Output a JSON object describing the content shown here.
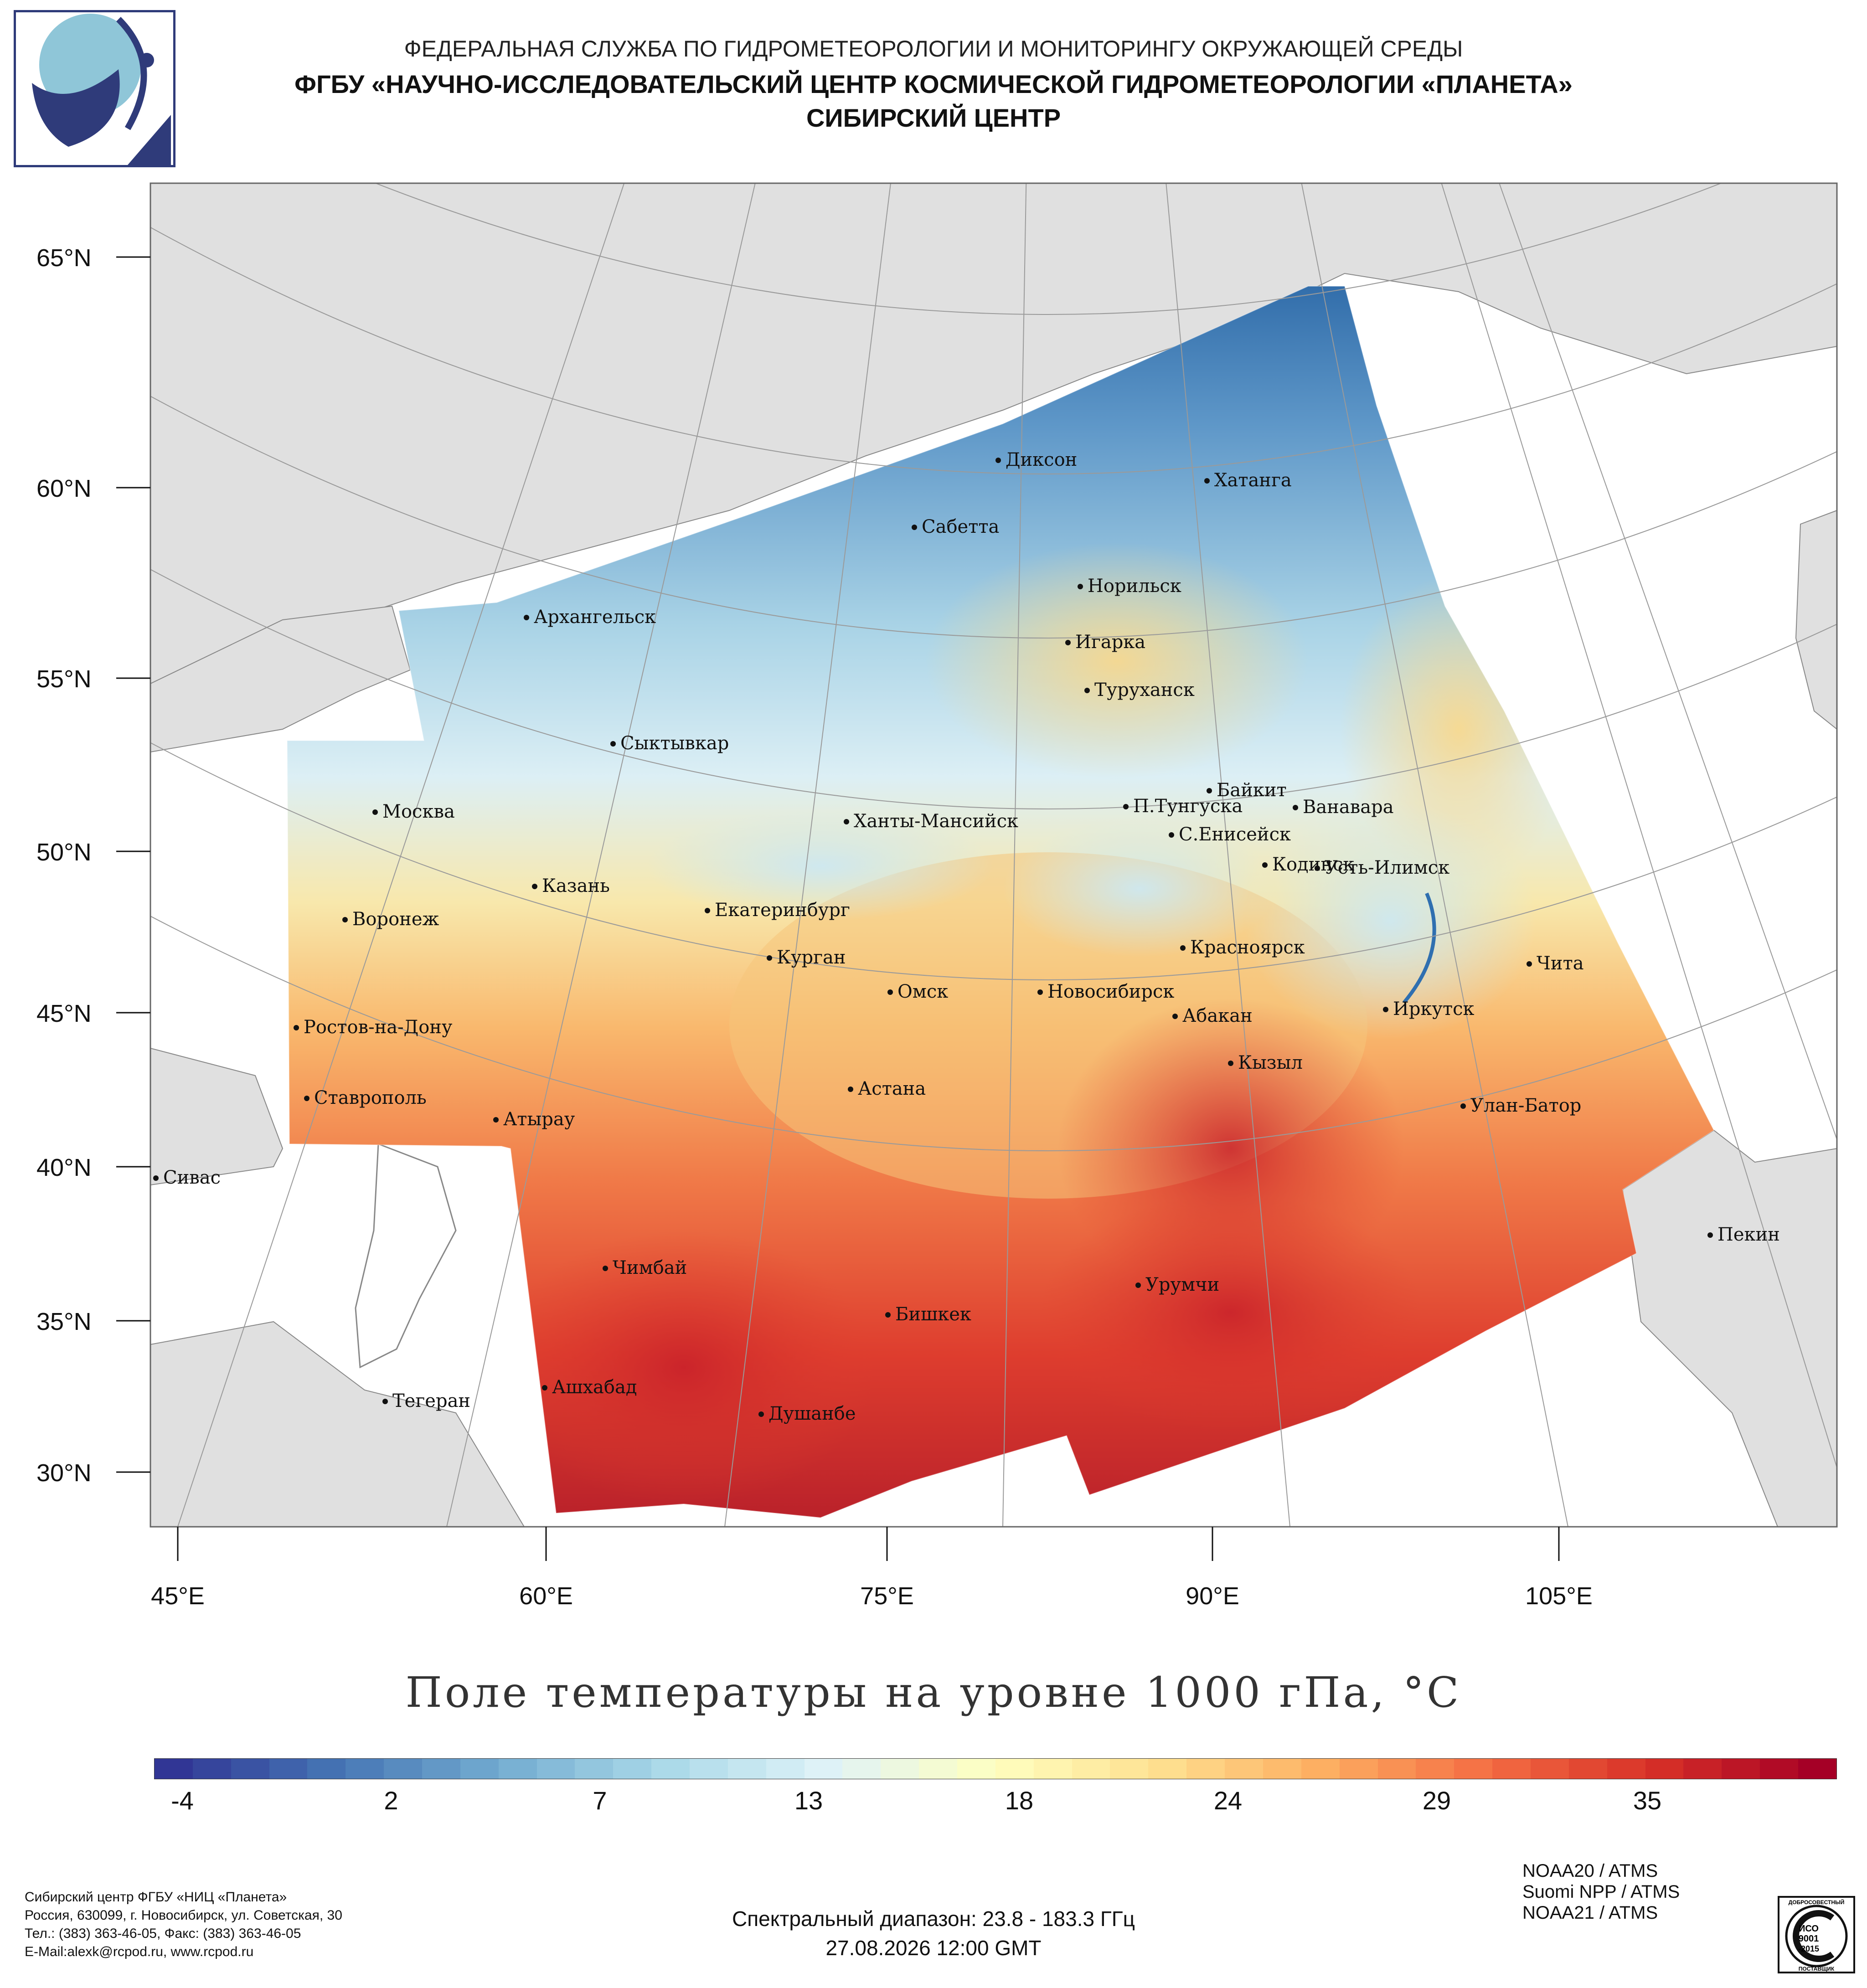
{
  "header": {
    "line1": "ФЕДЕРАЛЬНАЯ СЛУЖБА ПО ГИДРОМЕТЕОРОЛОГИИ И МОНИТОРИНГУ ОКРУЖАЮЩЕЙ СРЕДЫ",
    "line2": "ФГБУ «НАУЧНО-ИССЛЕДОВАТЕЛЬСКИЙ ЦЕНТР КОСМИЧЕСКОЙ ГИДРОМЕТЕОРОЛОГИИ «ПЛАНЕТА»",
    "line3": "СИБИРСКИЙ ЦЕНТР"
  },
  "map": {
    "lat_labels": [
      "65°N",
      "60°N",
      "55°N",
      "50°N",
      "45°N",
      "40°N",
      "35°N",
      "30°N"
    ],
    "lon_labels": [
      "45°E",
      "60°E",
      "75°E",
      "90°E",
      "105°E"
    ],
    "cities": [
      "Диксон",
      "Хатанга",
      "Сабетта",
      "Норильск",
      "Архангельск",
      "Игарка",
      "Туруханск",
      "Сыктывкар",
      "Байкит",
      "Москва",
      "П.Тунгуска",
      "Ванавара",
      "Ханты-Мансийск",
      "С.Енисейск",
      "Кодинск",
      "Усть-Илимск",
      "Казань",
      "Екатеринбург",
      "Воронеж",
      "Красноярск",
      "Курган",
      "Чита",
      "Омск",
      "Новосибирск",
      "Иркутск",
      "Абакан",
      "Ростов-на-Дону",
      "Кызыл",
      "Ставрополь",
      "Астана",
      "Улан-Батор",
      "Атырау",
      "Сивас",
      "Пекин",
      "Чимбай",
      "Урумчи",
      "Бишкек",
      "Ашхабад",
      "Тегеран",
      "Душанбе"
    ]
  },
  "title": "Поле температуры на уровне 1000 гПа, °C",
  "colorbar": {
    "ticks": [
      "-4",
      "2",
      "7",
      "13",
      "18",
      "24",
      "29",
      "35"
    ],
    "colors": [
      "#313695",
      "#4575b4",
      "#74add1",
      "#abd9e9",
      "#e0f3f8",
      "#ffffbf",
      "#fee090",
      "#fdae61",
      "#f46d43",
      "#d73027",
      "#a50026"
    ]
  },
  "footer": {
    "left": [
      "Сибирский центр ФГБУ «НИЦ «Планета»",
      "Россия, 630099, г. Новосибирск, ул. Советская, 30",
      "Тел.: (383) 363-46-05, Факс: (383) 363-46-05",
      "E-Mail:alexk@rcpod.ru, www.rcpod.ru"
    ],
    "spectral": "Спектральный диапазон: 23.8 - 183.3 ГГц",
    "datetime": "27.08.2026 12:00 GMT",
    "satellites": [
      "NOAA20 / ATMS",
      "Suomi NPP / ATMS",
      "NOAA21 / ATMS"
    ],
    "iso_badge": {
      "top": "ДОБРОСОВЕСТНЫЙ",
      "mid": "ИСО",
      "code": "9001",
      "year": "-2015",
      "bottom": "ПОСТАВЩИК"
    }
  }
}
